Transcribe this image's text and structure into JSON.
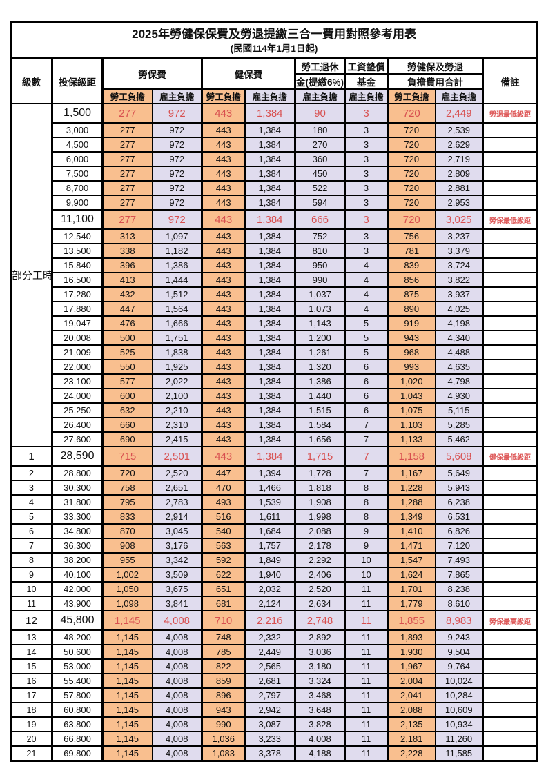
{
  "title": "2025年勞健保保費及勞退提繳三合一費用對照參考用表",
  "subtitle": "(民國114年1月1日起)",
  "colors": {
    "orange": "#F9BF8F",
    "lav": "#E0DCEE",
    "red": "#D85050",
    "red2": "#DE5A5A"
  },
  "header": {
    "level": "級數",
    "salary": "投保級距",
    "labor": "勞保費",
    "health": "健保費",
    "pension_line1": "勞工退休",
    "pension_line2": "金(提繳6%)",
    "wage_fund_line1": "工資墊償",
    "wage_fund_line2": "基金",
    "total_line1": "勞健保及勞退",
    "total_line2": "負擔費用合計",
    "remark": "備註",
    "employee": "勞工負擔",
    "employer": "雇主負擔"
  },
  "part_time": {
    "label": "部分工時",
    "rowspan": 23
  },
  "rows": [
    {
      "level": null,
      "salary": "1,500",
      "values": [
        "277",
        "972",
        "443",
        "1,384",
        "90",
        "3",
        "720",
        "2,449"
      ],
      "remark": "勞退最低級距",
      "hl": true
    },
    {
      "level": null,
      "salary": "3,000",
      "values": [
        "277",
        "972",
        "443",
        "1,384",
        "180",
        "3",
        "720",
        "2,539"
      ],
      "remark": "",
      "hl": false
    },
    {
      "level": null,
      "salary": "4,500",
      "values": [
        "277",
        "972",
        "443",
        "1,384",
        "270",
        "3",
        "720",
        "2,629"
      ],
      "remark": "",
      "hl": false
    },
    {
      "level": null,
      "salary": "6,000",
      "values": [
        "277",
        "972",
        "443",
        "1,384",
        "360",
        "3",
        "720",
        "2,719"
      ],
      "remark": "",
      "hl": false
    },
    {
      "level": null,
      "salary": "7,500",
      "values": [
        "277",
        "972",
        "443",
        "1,384",
        "450",
        "3",
        "720",
        "2,809"
      ],
      "remark": "",
      "hl": false
    },
    {
      "level": null,
      "salary": "8,700",
      "values": [
        "277",
        "972",
        "443",
        "1,384",
        "522",
        "3",
        "720",
        "2,881"
      ],
      "remark": "",
      "hl": false
    },
    {
      "level": null,
      "salary": "9,900",
      "values": [
        "277",
        "972",
        "443",
        "1,384",
        "594",
        "3",
        "720",
        "2,953"
      ],
      "remark": "",
      "hl": false
    },
    {
      "level": null,
      "salary": "11,100",
      "values": [
        "277",
        "972",
        "443",
        "1,384",
        "666",
        "3",
        "720",
        "3,025"
      ],
      "remark": "勞保最低級距",
      "hl": true
    },
    {
      "level": null,
      "salary": "12,540",
      "values": [
        "313",
        "1,097",
        "443",
        "1,384",
        "752",
        "3",
        "756",
        "3,237"
      ],
      "remark": "",
      "hl": false
    },
    {
      "level": null,
      "salary": "13,500",
      "values": [
        "338",
        "1,182",
        "443",
        "1,384",
        "810",
        "3",
        "781",
        "3,379"
      ],
      "remark": "",
      "hl": false
    },
    {
      "level": null,
      "salary": "15,840",
      "values": [
        "396",
        "1,386",
        "443",
        "1,384",
        "950",
        "4",
        "839",
        "3,724"
      ],
      "remark": "",
      "hl": false
    },
    {
      "level": null,
      "salary": "16,500",
      "values": [
        "413",
        "1,444",
        "443",
        "1,384",
        "990",
        "4",
        "856",
        "3,822"
      ],
      "remark": "",
      "hl": false
    },
    {
      "level": null,
      "salary": "17,280",
      "values": [
        "432",
        "1,512",
        "443",
        "1,384",
        "1,037",
        "4",
        "875",
        "3,937"
      ],
      "remark": "",
      "hl": false
    },
    {
      "level": null,
      "salary": "17,880",
      "values": [
        "447",
        "1,564",
        "443",
        "1,384",
        "1,073",
        "4",
        "890",
        "4,025"
      ],
      "remark": "",
      "hl": false
    },
    {
      "level": null,
      "salary": "19,047",
      "values": [
        "476",
        "1,666",
        "443",
        "1,384",
        "1,143",
        "5",
        "919",
        "4,198"
      ],
      "remark": "",
      "hl": false
    },
    {
      "level": null,
      "salary": "20,008",
      "values": [
        "500",
        "1,751",
        "443",
        "1,384",
        "1,200",
        "5",
        "943",
        "4,340"
      ],
      "remark": "",
      "hl": false
    },
    {
      "level": null,
      "salary": "21,009",
      "values": [
        "525",
        "1,838",
        "443",
        "1,384",
        "1,261",
        "5",
        "968",
        "4,488"
      ],
      "remark": "",
      "hl": false
    },
    {
      "level": null,
      "salary": "22,000",
      "values": [
        "550",
        "1,925",
        "443",
        "1,384",
        "1,320",
        "6",
        "993",
        "4,635"
      ],
      "remark": "",
      "hl": false
    },
    {
      "level": null,
      "salary": "23,100",
      "values": [
        "577",
        "2,022",
        "443",
        "1,384",
        "1,386",
        "6",
        "1,020",
        "4,798"
      ],
      "remark": "",
      "hl": false
    },
    {
      "level": null,
      "salary": "24,000",
      "values": [
        "600",
        "2,100",
        "443",
        "1,384",
        "1,440",
        "6",
        "1,043",
        "4,930"
      ],
      "remark": "",
      "hl": false
    },
    {
      "level": null,
      "salary": "25,250",
      "values": [
        "632",
        "2,210",
        "443",
        "1,384",
        "1,515",
        "6",
        "1,075",
        "5,115"
      ],
      "remark": "",
      "hl": false
    },
    {
      "level": null,
      "salary": "26,400",
      "values": [
        "660",
        "2,310",
        "443",
        "1,384",
        "1,584",
        "7",
        "1,103",
        "5,285"
      ],
      "remark": "",
      "hl": false
    },
    {
      "level": null,
      "salary": "27,600",
      "values": [
        "690",
        "2,415",
        "443",
        "1,384",
        "1,656",
        "7",
        "1,133",
        "5,462"
      ],
      "remark": "",
      "hl": false
    },
    {
      "level": "1",
      "salary": "28,590",
      "values": [
        "715",
        "2,501",
        "443",
        "1,384",
        "1,715",
        "7",
        "1,158",
        "5,608"
      ],
      "remark": "健保最低級距",
      "hl": true
    },
    {
      "level": "2",
      "salary": "28,800",
      "values": [
        "720",
        "2,520",
        "447",
        "1,394",
        "1,728",
        "7",
        "1,167",
        "5,649"
      ],
      "remark": "",
      "hl": false
    },
    {
      "level": "3",
      "salary": "30,300",
      "values": [
        "758",
        "2,651",
        "470",
        "1,466",
        "1,818",
        "8",
        "1,228",
        "5,943"
      ],
      "remark": "",
      "hl": false
    },
    {
      "level": "4",
      "salary": "31,800",
      "values": [
        "795",
        "2,783",
        "493",
        "1,539",
        "1,908",
        "8",
        "1,288",
        "6,238"
      ],
      "remark": "",
      "hl": false
    },
    {
      "level": "5",
      "salary": "33,300",
      "values": [
        "833",
        "2,914",
        "516",
        "1,611",
        "1,998",
        "8",
        "1,349",
        "6,531"
      ],
      "remark": "",
      "hl": false
    },
    {
      "level": "6",
      "salary": "34,800",
      "values": [
        "870",
        "3,045",
        "540",
        "1,684",
        "2,088",
        "9",
        "1,410",
        "6,826"
      ],
      "remark": "",
      "hl": false
    },
    {
      "level": "7",
      "salary": "36,300",
      "values": [
        "908",
        "3,176",
        "563",
        "1,757",
        "2,178",
        "9",
        "1,471",
        "7,120"
      ],
      "remark": "",
      "hl": false
    },
    {
      "level": "8",
      "salary": "38,200",
      "values": [
        "955",
        "3,342",
        "592",
        "1,849",
        "2,292",
        "10",
        "1,547",
        "7,493"
      ],
      "remark": "",
      "hl": false
    },
    {
      "level": "9",
      "salary": "40,100",
      "values": [
        "1,002",
        "3,509",
        "622",
        "1,940",
        "2,406",
        "10",
        "1,624",
        "7,865"
      ],
      "remark": "",
      "hl": false
    },
    {
      "level": "10",
      "salary": "42,000",
      "values": [
        "1,050",
        "3,675",
        "651",
        "2,032",
        "2,520",
        "11",
        "1,701",
        "8,238"
      ],
      "remark": "",
      "hl": false
    },
    {
      "level": "11",
      "salary": "43,900",
      "values": [
        "1,098",
        "3,841",
        "681",
        "2,124",
        "2,634",
        "11",
        "1,779",
        "8,610"
      ],
      "remark": "",
      "hl": false
    },
    {
      "level": "12",
      "salary": "45,800",
      "values": [
        "1,145",
        "4,008",
        "710",
        "2,216",
        "2,748",
        "11",
        "1,855",
        "8,983"
      ],
      "remark": "勞保最高級距",
      "hl": true
    },
    {
      "level": "13",
      "salary": "48,200",
      "values": [
        "1,145",
        "4,008",
        "748",
        "2,332",
        "2,892",
        "11",
        "1,893",
        "9,243"
      ],
      "remark": "",
      "hl": false
    },
    {
      "level": "14",
      "salary": "50,600",
      "values": [
        "1,145",
        "4,008",
        "785",
        "2,449",
        "3,036",
        "11",
        "1,930",
        "9,504"
      ],
      "remark": "",
      "hl": false
    },
    {
      "level": "15",
      "salary": "53,000",
      "values": [
        "1,145",
        "4,008",
        "822",
        "2,565",
        "3,180",
        "11",
        "1,967",
        "9,764"
      ],
      "remark": "",
      "hl": false
    },
    {
      "level": "16",
      "salary": "55,400",
      "values": [
        "1,145",
        "4,008",
        "859",
        "2,681",
        "3,324",
        "11",
        "2,004",
        "10,024"
      ],
      "remark": "",
      "hl": false
    },
    {
      "level": "17",
      "salary": "57,800",
      "values": [
        "1,145",
        "4,008",
        "896",
        "2,797",
        "3,468",
        "11",
        "2,041",
        "10,284"
      ],
      "remark": "",
      "hl": false
    },
    {
      "level": "18",
      "salary": "60,800",
      "values": [
        "1,145",
        "4,008",
        "943",
        "2,942",
        "3,648",
        "11",
        "2,088",
        "10,609"
      ],
      "remark": "",
      "hl": false
    },
    {
      "level": "19",
      "salary": "63,800",
      "values": [
        "1,145",
        "4,008",
        "990",
        "3,087",
        "3,828",
        "11",
        "2,135",
        "10,934"
      ],
      "remark": "",
      "hl": false
    },
    {
      "level": "20",
      "salary": "66,800",
      "values": [
        "1,145",
        "4,008",
        "1,036",
        "3,233",
        "4,008",
        "11",
        "2,181",
        "11,260"
      ],
      "remark": "",
      "hl": false
    },
    {
      "level": "21",
      "salary": "69,800",
      "values": [
        "1,145",
        "4,008",
        "1,083",
        "3,378",
        "4,188",
        "11",
        "2,228",
        "11,585"
      ],
      "remark": "",
      "hl": false
    }
  ]
}
